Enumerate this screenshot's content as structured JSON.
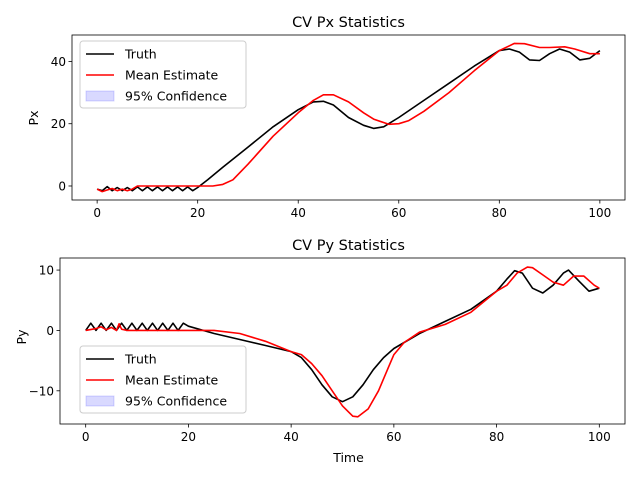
{
  "chart_data": [
    {
      "type": "line",
      "title": "CV Px Statistics",
      "xlabel": "",
      "ylabel": "Px",
      "xlim": [
        -5,
        105
      ],
      "ylim": [
        -4.5,
        48.5
      ],
      "xticks": [
        "0",
        "20",
        "40",
        "60",
        "80",
        "100"
      ],
      "yticks": [
        "0",
        "20",
        "40"
      ],
      "legend_position": "upper-left",
      "legend": [
        "Truth",
        "Mean Estimate",
        "95% Confidence"
      ],
      "series": [
        {
          "name": "Truth",
          "color": "#000000",
          "x": [
            0,
            1,
            2,
            3,
            4,
            5,
            6,
            7,
            8,
            9,
            10,
            11,
            12,
            13,
            14,
            15,
            16,
            17,
            18,
            19,
            20,
            22,
            25,
            30,
            35,
            40,
            43,
            45,
            47,
            50,
            53,
            55,
            57,
            58,
            60,
            65,
            70,
            75,
            80,
            82,
            84,
            86,
            88,
            90,
            92,
            94,
            96,
            98,
            100
          ],
          "values": [
            -1,
            -1.5,
            -0.2,
            -1.5,
            -0.5,
            -1.5,
            -0.5,
            -1.5,
            -0.3,
            -1.5,
            -0.3,
            -1.5,
            -0.3,
            -1.5,
            -0.3,
            -1.5,
            -0.3,
            -1.5,
            -0.3,
            -1.5,
            -0.5,
            2,
            6,
            12.5,
            19,
            24.5,
            27,
            27.2,
            26,
            22,
            19.5,
            18.5,
            19,
            20,
            22,
            27.5,
            33,
            38.5,
            43.5,
            44,
            43,
            40.5,
            40.3,
            42.5,
            44,
            43,
            40.5,
            41,
            43.5
          ]
        },
        {
          "name": "Mean Estimate",
          "color": "#ff0000",
          "x": [
            0,
            1,
            2,
            3,
            4,
            5,
            6,
            7,
            8,
            10,
            12,
            15,
            18,
            20,
            23,
            25,
            27,
            30,
            35,
            40,
            43,
            45,
            47,
            50,
            53,
            55,
            58,
            60,
            62,
            65,
            70,
            75,
            80,
            83,
            85,
            88,
            90,
            93,
            95,
            98,
            100
          ],
          "values": [
            -1,
            -1.8,
            -1.3,
            -0.8,
            -1.5,
            -1,
            -1.5,
            -1,
            0,
            0,
            0,
            0,
            0,
            0,
            0,
            0.5,
            2,
            7,
            16,
            23.5,
            27.5,
            29.3,
            29.3,
            27,
            23.5,
            21.5,
            19.8,
            20,
            21,
            24,
            30,
            37,
            43.5,
            45.8,
            45.7,
            44.5,
            44.5,
            44.7,
            44,
            42.5,
            42.5
          ]
        }
      ]
    },
    {
      "type": "line",
      "title": "CV Py Statistics",
      "xlabel": "Time",
      "ylabel": "Py",
      "xlim": [
        -5,
        105
      ],
      "ylim": [
        -15.5,
        12
      ],
      "xticks": [
        "0",
        "20",
        "40",
        "60",
        "80",
        "100"
      ],
      "yticks": [
        "−10",
        "0",
        "10"
      ],
      "legend_position": "lower-left",
      "legend": [
        "Truth",
        "Mean Estimate",
        "95% Confidence"
      ],
      "series": [
        {
          "name": "Truth",
          "color": "#000000",
          "x": [
            0,
            1,
            2,
            3,
            4,
            5,
            6,
            7,
            8,
            9,
            10,
            11,
            12,
            13,
            14,
            15,
            16,
            17,
            18,
            19,
            20,
            25,
            30,
            35,
            40,
            42,
            44,
            46,
            48,
            50,
            52,
            54,
            56,
            58,
            60,
            65,
            70,
            75,
            80,
            82,
            83.5,
            85,
            87,
            89,
            91,
            93,
            94,
            96,
            98,
            100
          ],
          "values": [
            0,
            1.2,
            0,
            1.2,
            0,
            1.2,
            0,
            1.2,
            0,
            1.2,
            0,
            1.2,
            0,
            1.2,
            0,
            1.2,
            0,
            1.2,
            0,
            1.2,
            0.7,
            -0.5,
            -1.5,
            -2.5,
            -3.5,
            -4.5,
            -6.5,
            -9,
            -11,
            -11.8,
            -11,
            -9,
            -6.5,
            -4.5,
            -3,
            -0.5,
            1.5,
            3.5,
            6.5,
            8.5,
            9.9,
            9.5,
            7,
            6.2,
            7.5,
            9.5,
            10,
            8.2,
            6.5,
            7
          ]
        },
        {
          "name": "Mean Estimate",
          "color": "#ff0000",
          "x": [
            0,
            2,
            3,
            4,
            5,
            6,
            6.5,
            7,
            8,
            10,
            15,
            20,
            25,
            30,
            35,
            40,
            42,
            44,
            46,
            48,
            50,
            52,
            53,
            55,
            57,
            59,
            60,
            62,
            65,
            70,
            75,
            80,
            82,
            84,
            86,
            87,
            89,
            91,
            93,
            95,
            97,
            99,
            100
          ],
          "values": [
            0,
            0.3,
            0.6,
            0.1,
            0.5,
            0,
            1.1,
            0.2,
            0,
            0,
            0,
            0,
            0,
            -0.5,
            -1.8,
            -3.5,
            -4,
            -5.5,
            -7.5,
            -10,
            -12.5,
            -14.2,
            -14.3,
            -13,
            -10,
            -6,
            -4,
            -2,
            -0.3,
            1,
            3,
            6.5,
            7.5,
            9.5,
            10.5,
            10.4,
            9.2,
            8,
            7.5,
            9,
            9,
            7.5,
            7
          ]
        }
      ]
    }
  ]
}
